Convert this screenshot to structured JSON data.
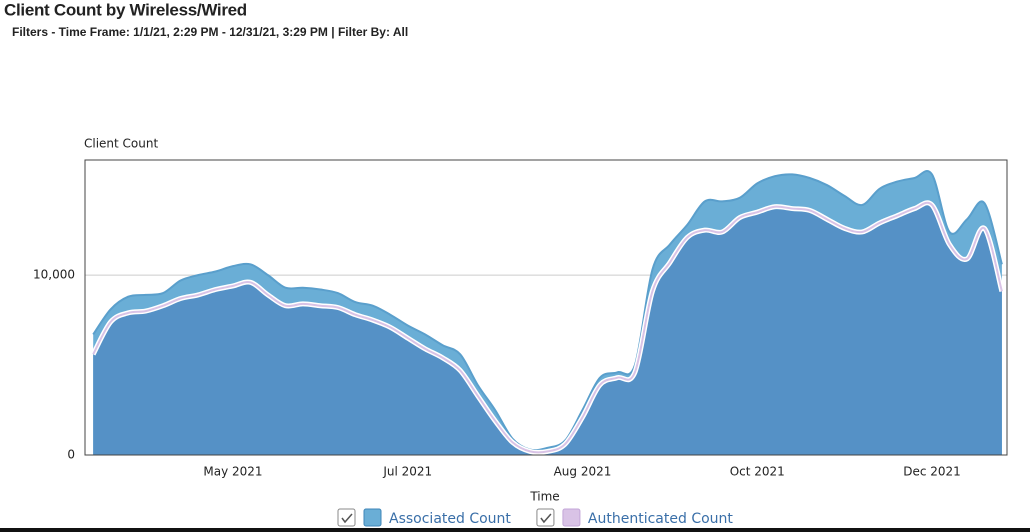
{
  "chart_data": {
    "type": "area",
    "title": "Client Count by Wireless/Wired",
    "subtitle": "Filters - Time Frame: 1/1/21, 2:29 PM - 12/31/21, 3:29 PM | Filter By: All",
    "y_label": "Client Count",
    "x_label": "Time",
    "categories": [
      null,
      null,
      null,
      null,
      null,
      null,
      null,
      null,
      "May 2021",
      null,
      null,
      null,
      null,
      null,
      null,
      null,
      null,
      null,
      "Jul 2021",
      null,
      null,
      null,
      null,
      null,
      null,
      null,
      null,
      null,
      "Aug 2021",
      null,
      null,
      null,
      null,
      null,
      null,
      null,
      null,
      null,
      "Oct 2021",
      null,
      null,
      null,
      null,
      null,
      null,
      null,
      null,
      null,
      "Dec 2021",
      null,
      null,
      null,
      null
    ],
    "series": [
      {
        "name": "Associated Count",
        "color": "#6aaed6",
        "values": [
          6700,
          8100,
          8800,
          8900,
          9000,
          9700,
          10000,
          10200,
          10500,
          10600,
          10000,
          9300,
          9300,
          9200,
          9000,
          8500,
          8300,
          7800,
          7200,
          6700,
          6100,
          5600,
          3900,
          2500,
          900,
          300,
          400,
          800,
          2500,
          4300,
          4600,
          5000,
          10300,
          11700,
          12800,
          14100,
          14100,
          14300,
          15100,
          15500,
          15600,
          15400,
          15000,
          14400,
          13900,
          14800,
          15200,
          15400,
          15600,
          12400,
          13100,
          14000,
          10600
        ]
      },
      {
        "name": "Authenticated Count",
        "color": "#d9c3e6",
        "values": [
          5600,
          7400,
          7900,
          8000,
          8300,
          8700,
          8900,
          9200,
          9400,
          9600,
          8900,
          8300,
          8400,
          8300,
          8200,
          7800,
          7500,
          7100,
          6500,
          5900,
          5400,
          4700,
          3300,
          1900,
          700,
          200,
          200,
          600,
          2100,
          3900,
          4300,
          4600,
          9100,
          10700,
          12100,
          12500,
          12400,
          13200,
          13500,
          13800,
          13700,
          13600,
          13100,
          12600,
          12400,
          12900,
          13300,
          13700,
          13900,
          11700,
          10900,
          12600,
          9100
        ]
      }
    ],
    "ylim": [
      0,
      16400
    ],
    "yticks": [
      0,
      {
        "value": 10000,
        "label": "10,000"
      }
    ],
    "grid": true
  }
}
